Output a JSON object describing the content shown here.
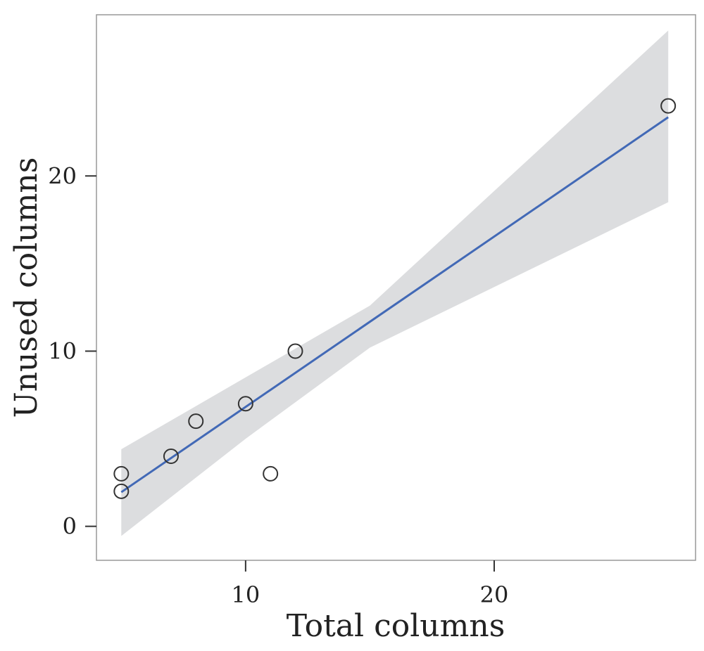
{
  "chart_data": {
    "type": "scatter",
    "xlabel": "Total columns",
    "ylabel": "Unused columns",
    "xlim": [
      4,
      28.1
    ],
    "ylim": [
      -1.94,
      29.2
    ],
    "xticks": [
      10,
      20
    ],
    "yticks": [
      0,
      10,
      20
    ],
    "grid": false,
    "points": [
      {
        "x": 5,
        "y": 3
      },
      {
        "x": 5,
        "y": 2
      },
      {
        "x": 7,
        "y": 4
      },
      {
        "x": 8,
        "y": 6
      },
      {
        "x": 10,
        "y": 7
      },
      {
        "x": 11,
        "y": 3
      },
      {
        "x": 12,
        "y": 10
      },
      {
        "x": 27,
        "y": 24
      }
    ],
    "regression": {
      "x": [
        5,
        27
      ],
      "y": [
        1.95,
        23.35
      ]
    },
    "confidence_band": {
      "x": [
        5,
        10,
        15,
        27
      ],
      "lower": [
        -0.55,
        5.0,
        10.2,
        18.5
      ],
      "upper": [
        4.4,
        8.5,
        12.6,
        28.3
      ]
    },
    "colors": {
      "line": "#4269b6",
      "band": "#dcdddf",
      "marker_edge": "#333333",
      "frame": "#999999",
      "text": "#222222"
    }
  }
}
